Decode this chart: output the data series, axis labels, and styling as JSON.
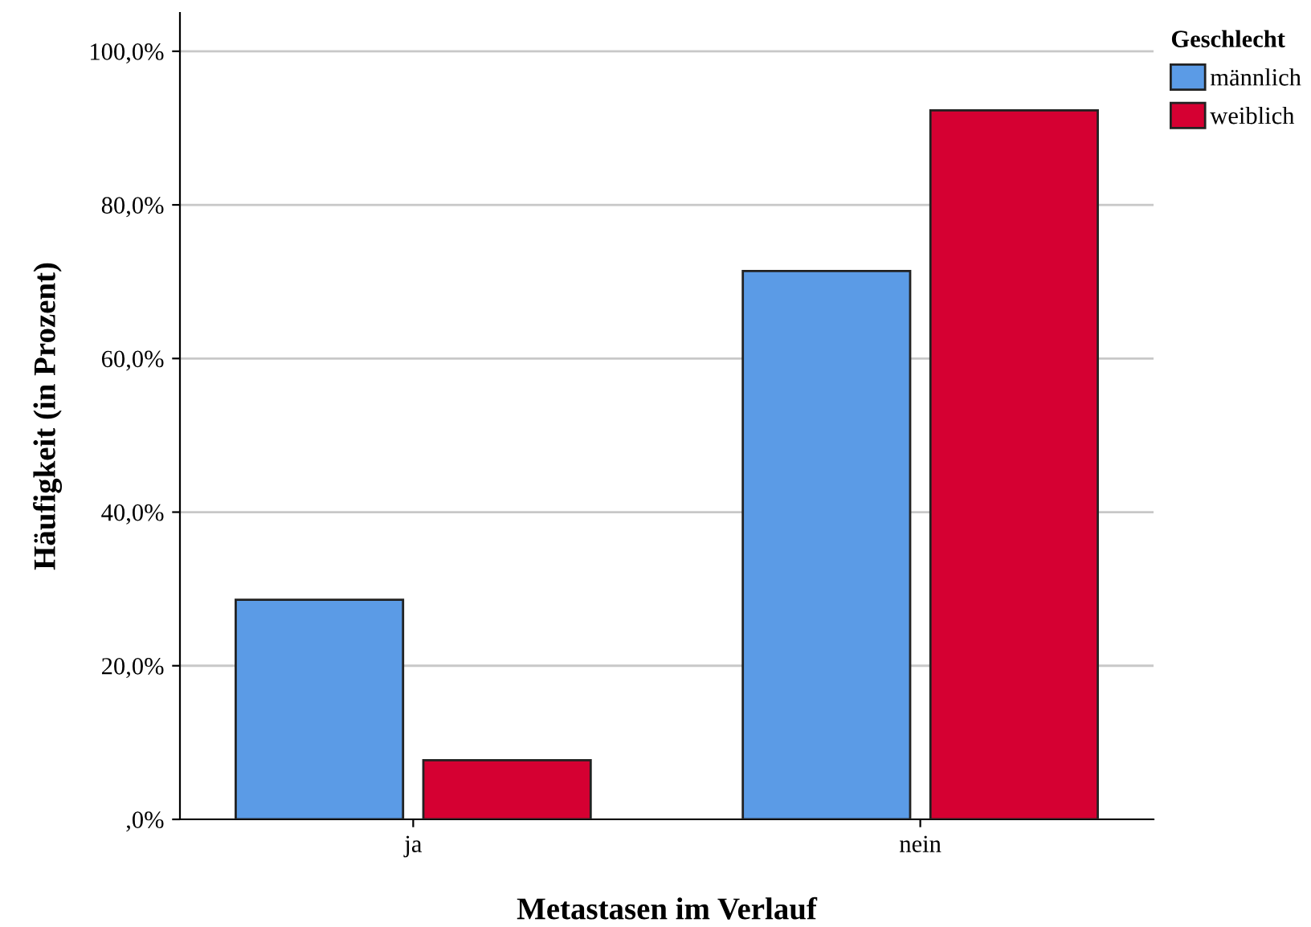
{
  "chart_data": {
    "type": "bar",
    "xlabel": "Metastasen im Verlauf",
    "ylabel": "Häufigkeit (in Prozent)",
    "legend_title": "Geschlecht",
    "categories": [
      "ja",
      "nein"
    ],
    "series": [
      {
        "name": "männlich",
        "color": "#5b9be6",
        "values": [
          28.6,
          71.4
        ]
      },
      {
        "name": "weiblich",
        "color": "#d50032",
        "values": [
          7.7,
          92.3
        ]
      }
    ],
    "ylim": [
      0,
      105
    ],
    "yticks": [
      {
        "value": 0,
        "label": ",0%"
      },
      {
        "value": 20,
        "label": "20,0%"
      },
      {
        "value": 40,
        "label": "40,0%"
      },
      {
        "value": 60,
        "label": "60,0%"
      },
      {
        "value": 80,
        "label": "80,0%"
      },
      {
        "value": 100,
        "label": "100,0%"
      }
    ],
    "grid": "y",
    "legend": "top right"
  }
}
